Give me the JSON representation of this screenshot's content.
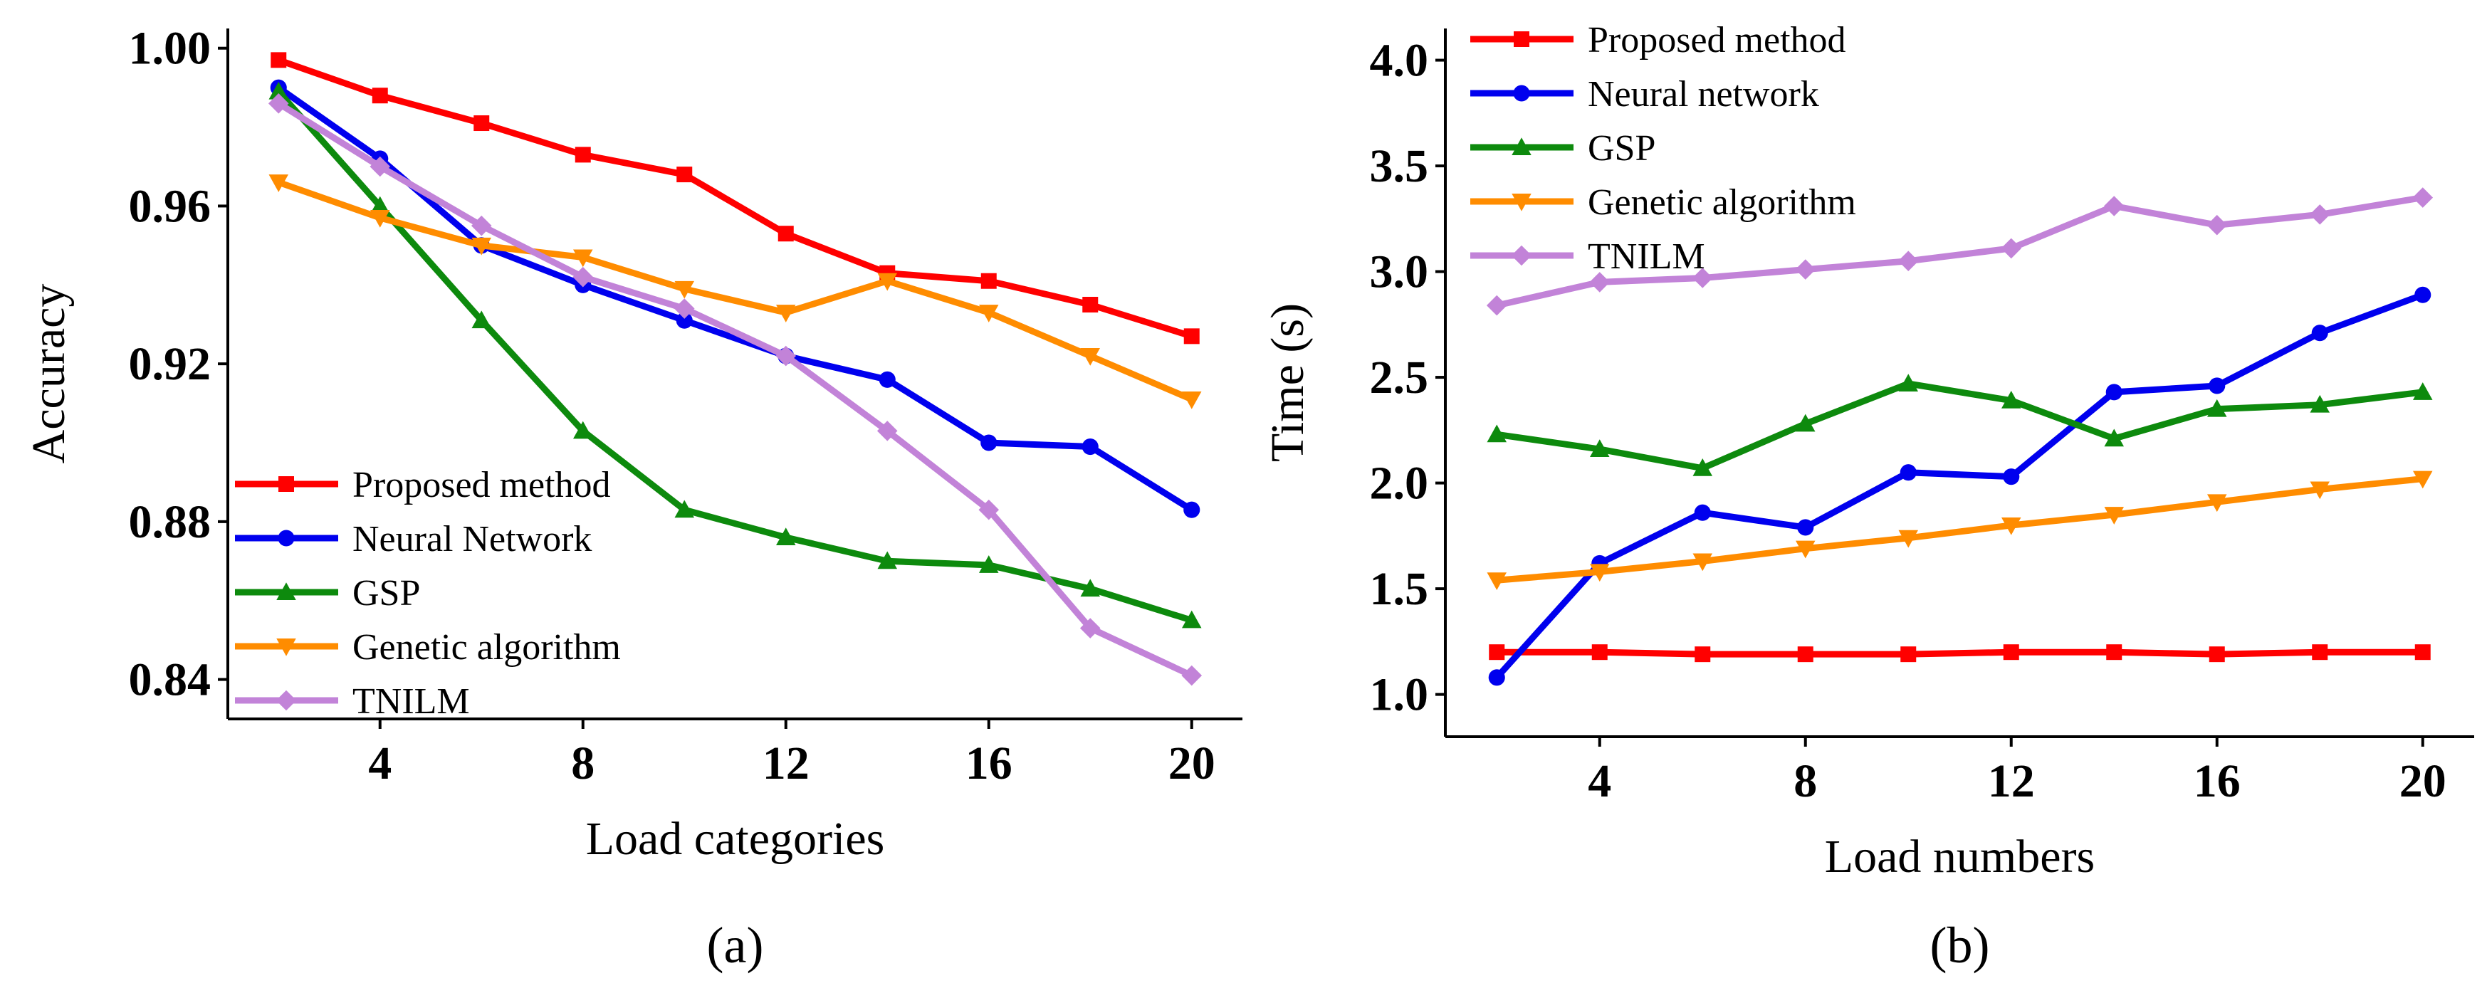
{
  "chart_data": [
    {
      "type": "line",
      "panel_label": "(a)",
      "xlabel": "Load categories",
      "ylabel": "Accuracy",
      "xlim": [
        1,
        21
      ],
      "ylim": [
        0.83,
        1.005
      ],
      "xticks": [
        4,
        8,
        12,
        16,
        20
      ],
      "xtick_labels": [
        "4",
        "8",
        "12",
        "16",
        "20"
      ],
      "yticks": [
        0.84,
        0.88,
        0.92,
        0.96,
        1.0
      ],
      "ytick_labels": [
        "0.84",
        "0.88",
        "0.92",
        "0.96",
        "1.00"
      ],
      "legend_position": "bottom-left",
      "x": [
        2,
        4,
        6,
        8,
        10,
        12,
        14,
        16,
        18,
        20
      ],
      "series": [
        {
          "name": "Proposed method",
          "color": "#ff0000",
          "marker": "square",
          "values": [
            0.997,
            0.988,
            0.981,
            0.973,
            0.968,
            0.953,
            0.943,
            0.941,
            0.935,
            0.927
          ]
        },
        {
          "name": "Neural Network",
          "color": "#0000ee",
          "marker": "circle",
          "values": [
            0.99,
            0.972,
            0.95,
            0.94,
            0.931,
            0.922,
            0.916,
            0.9,
            0.899,
            0.883
          ]
        },
        {
          "name": "GSP",
          "color": "#0d8a0d",
          "marker": "triangle-up",
          "values": [
            0.989,
            0.96,
            0.931,
            0.903,
            0.883,
            0.876,
            0.87,
            0.869,
            0.863,
            0.855
          ]
        },
        {
          "name": "Genetic algorithm",
          "color": "#ff8c00",
          "marker": "triangle-down",
          "values": [
            0.966,
            0.957,
            0.95,
            0.947,
            0.939,
            0.933,
            0.941,
            0.933,
            0.922,
            0.911
          ]
        },
        {
          "name": "TNILM",
          "color": "#c283d8",
          "marker": "diamond",
          "values": [
            0.986,
            0.97,
            0.955,
            0.942,
            0.934,
            0.922,
            0.903,
            0.883,
            0.853,
            0.841
          ]
        }
      ]
    },
    {
      "type": "line",
      "panel_label": "(b)",
      "xlabel": "Load numbers",
      "ylabel": "Time (s)",
      "xlim": [
        1,
        21
      ],
      "ylim": [
        0.8,
        4.15
      ],
      "xticks": [
        4,
        8,
        12,
        16,
        20
      ],
      "xtick_labels": [
        "4",
        "8",
        "12",
        "16",
        "20"
      ],
      "yticks": [
        1.0,
        1.5,
        2.0,
        2.5,
        3.0,
        3.5,
        4.0
      ],
      "ytick_labels": [
        "1.0",
        "1.5",
        "2.0",
        "2.5",
        "3.0",
        "3.5",
        "4.0"
      ],
      "legend_position": "top-left",
      "x": [
        2,
        4,
        6,
        8,
        10,
        12,
        14,
        16,
        18,
        20
      ],
      "series": [
        {
          "name": "Proposed method",
          "color": "#ff0000",
          "marker": "square",
          "values": [
            1.2,
            1.2,
            1.19,
            1.19,
            1.19,
            1.2,
            1.2,
            1.19,
            1.2,
            1.2
          ]
        },
        {
          "name": "Neural network",
          "color": "#0000ee",
          "marker": "circle",
          "values": [
            1.08,
            1.62,
            1.86,
            1.79,
            2.05,
            2.03,
            2.43,
            2.46,
            2.71,
            2.89
          ]
        },
        {
          "name": "GSP",
          "color": "#0d8a0d",
          "marker": "triangle-up",
          "values": [
            2.23,
            2.16,
            2.07,
            2.28,
            2.47,
            2.39,
            2.21,
            2.35,
            2.37,
            2.43
          ]
        },
        {
          "name": "Genetic algorithm",
          "color": "#ff8c00",
          "marker": "triangle-down",
          "values": [
            1.54,
            1.58,
            1.63,
            1.69,
            1.74,
            1.8,
            1.85,
            1.91,
            1.97,
            2.02
          ]
        },
        {
          "name": "TNILM",
          "color": "#c283d8",
          "marker": "diamond",
          "values": [
            2.84,
            2.95,
            2.97,
            3.01,
            3.05,
            3.11,
            3.31,
            3.22,
            3.27,
            3.35
          ]
        }
      ]
    }
  ]
}
